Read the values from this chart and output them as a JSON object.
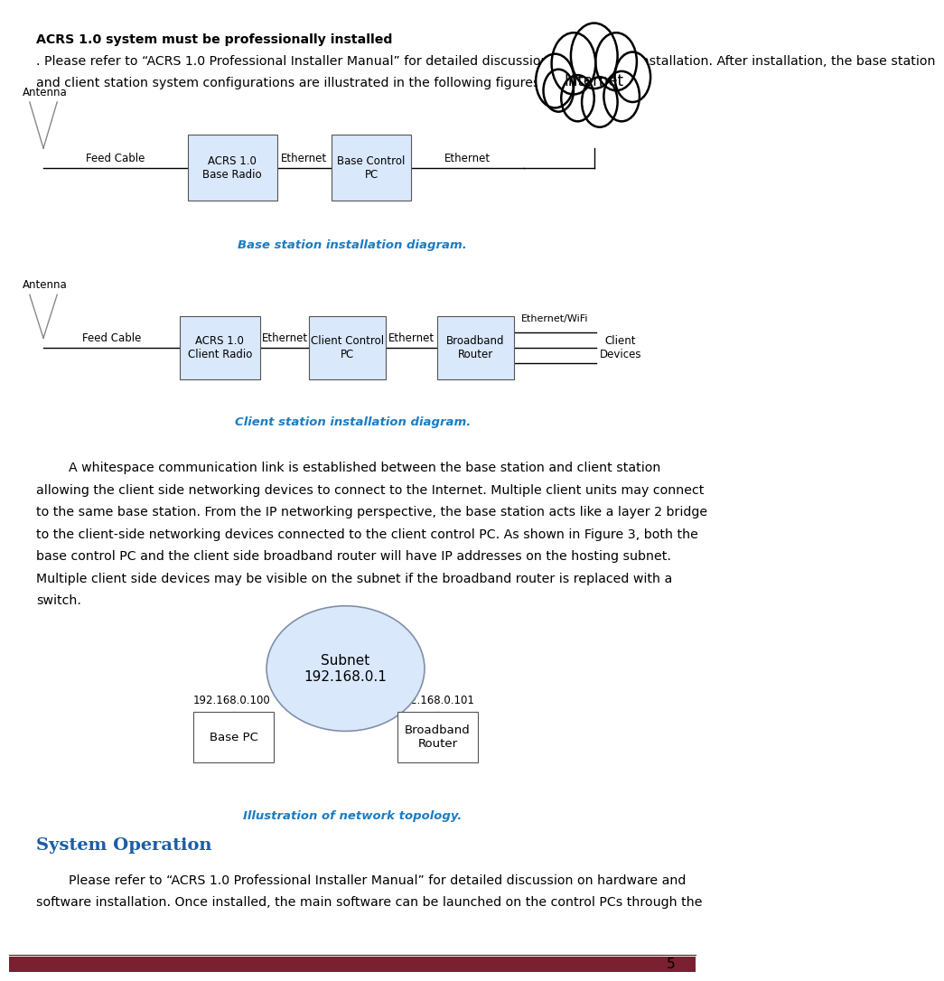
{
  "page_width": 9.81,
  "page_height": 13.85,
  "bg_color": "#ffffff",
  "text_color": "#000000",
  "blue_color": "#1B5EA6",
  "caption_color": "#1B7CC2",
  "box_fill_color": "#DAE8FC",
  "footer_bar_color": "#7B2030",
  "page_number": "5",
  "heading_bold": "ACRS 1.0 system must be professionally installed",
  "heading_normal": ". Please refer to “ACRS 1.0 Professional Installer Manual” for detailed discussion on hardware installation. After installation, the base station and client station system configurations are illustrated in the following figures.",
  "base_caption": "Base station installation diagram.",
  "client_caption": "Client station installation diagram.",
  "network_caption": "Illustration of network topology.",
  "system_operation_heading": "System Operation",
  "para_lines": [
    "        A whitespace communication link is established between the base station and client station",
    "allowing the client side networking devices to connect to the Internet. Multiple client units may connect",
    "to the same base station. From the IP networking perspective, the base station acts like a layer 2 bridge",
    "to the client-side networking devices connected to the client control PC. As shown in Figure 3, both the",
    "base control PC and the client side broadband router will have IP addresses on the hosting subnet.",
    "Multiple client side devices may be visible on the subnet if the broadband router is replaced with a",
    "switch."
  ],
  "so_lines": [
    "        Please refer to “ACRS 1.0 Professional Installer Manual” for detailed discussion on hardware and",
    "software installation. Once installed, the main software can be launched on the control PCs through the"
  ],
  "cloud_circles": [
    [
      0.795,
      0.0,
      0.028
    ],
    [
      0.822,
      0.018,
      0.032
    ],
    [
      0.852,
      0.026,
      0.034
    ],
    [
      0.884,
      0.02,
      0.03
    ],
    [
      0.908,
      0.004,
      0.026
    ],
    [
      0.892,
      -0.016,
      0.026
    ],
    [
      0.86,
      -0.022,
      0.026
    ],
    [
      0.828,
      -0.018,
      0.024
    ],
    [
      0.8,
      -0.01,
      0.022
    ]
  ]
}
